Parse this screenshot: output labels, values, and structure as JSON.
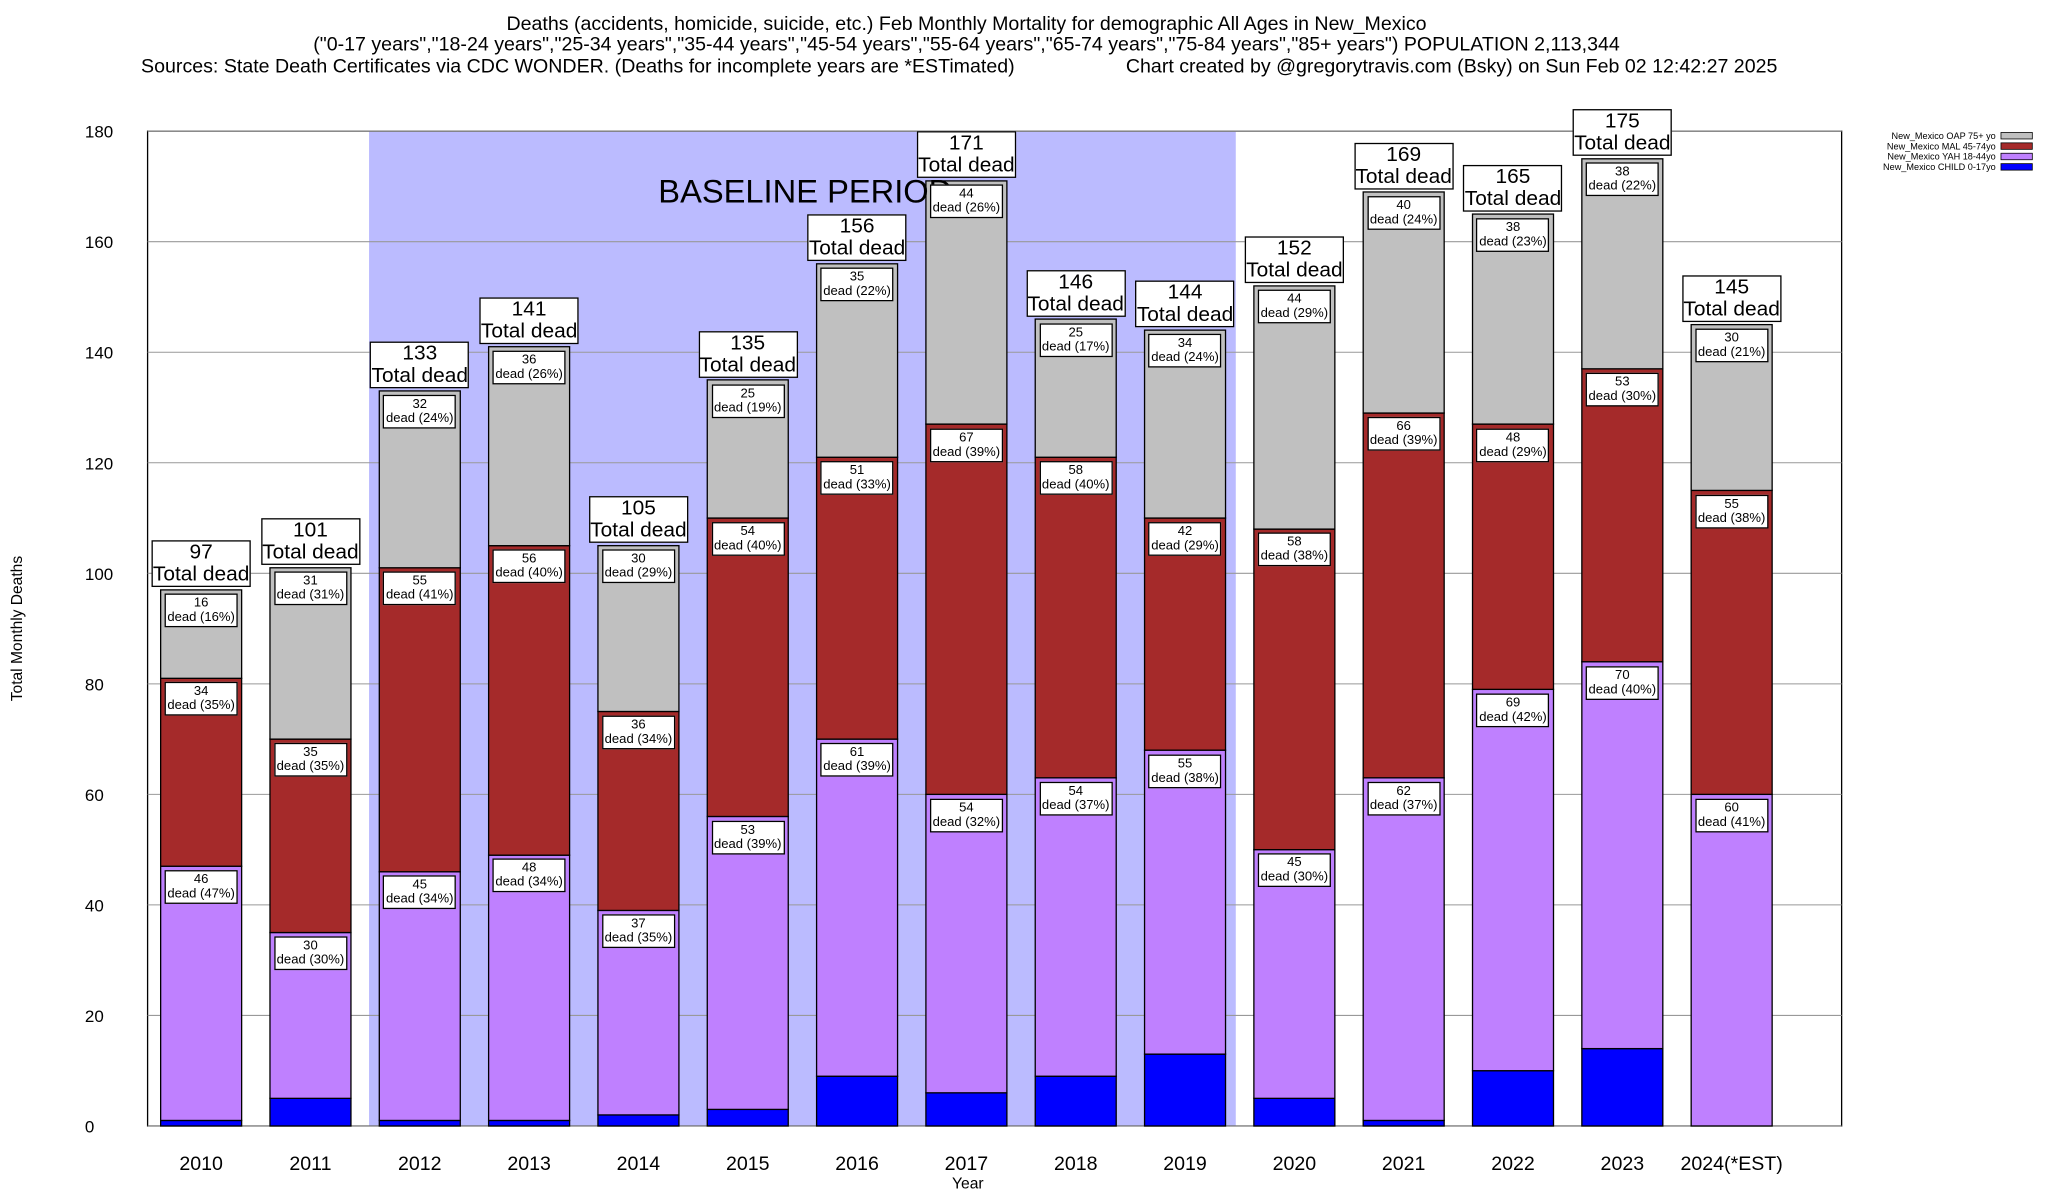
{
  "chart_data": {
    "type": "stacked-bar",
    "title": "Deaths (accidents, homicide, suicide, etc.) Feb Monthly Mortality for demographic All Ages in New_Mexico",
    "subtitle": "(\"0-17 years\",\"18-24 years\",\"25-34 years\",\"35-44 years\",\"45-54 years\",\"55-64 years\",\"65-74 years\",\"75-84 years\",\"85+ years\") POPULATION 2,113,344",
    "source": "Sources: State Death Certificates via CDC WONDER. (Deaths for incomplete years are *ESTimated)",
    "credit": "Chart created by @gregorytravis.com (Bsky) on Sun Feb 02 12:42:27 2025",
    "x_label": "Year",
    "y_label": "Total Monthly Deaths",
    "annotation": "BASELINE PERIOD",
    "categories": [
      "2010",
      "2011",
      "2012",
      "2013",
      "2014",
      "2015",
      "2016",
      "2017",
      "2018",
      "2019",
      "2020",
      "2021",
      "2022",
      "2023",
      "2024(*EST)"
    ],
    "ylim": [
      0,
      180
    ],
    "yticks": [
      0,
      20,
      40,
      60,
      80,
      100,
      120,
      140,
      160,
      180
    ],
    "grid": true,
    "series": [
      {
        "name": "New_Mexico CHILD 0-17yo",
        "color": "#0000ff",
        "values": [
          1,
          5,
          1,
          1,
          2,
          3,
          9,
          6,
          9,
          13,
          5,
          1,
          10,
          14,
          0
        ]
      },
      {
        "name": "New_Mexico YAH 18-44yo",
        "color": "#bf80ff",
        "values": [
          46,
          30,
          45,
          48,
          37,
          53,
          61,
          54,
          54,
          55,
          45,
          62,
          69,
          70,
          60
        ],
        "value_labels": [
          "46\ndead (47%)",
          "30\ndead (30%)",
          "45\ndead (34%)",
          "48\ndead (34%)",
          "37\ndead (35%)",
          "53\ndead (39%)",
          "61\ndead (39%)",
          "54\ndead (32%)",
          "54\ndead (37%)",
          "55\ndead (38%)",
          "45\ndead (30%)",
          "62\ndead (37%)",
          "69\ndead (42%)",
          "70\ndead (40%)",
          "60\ndead (41%)"
        ]
      },
      {
        "name": "New_Mexico MAL 45-74yo",
        "color": "#a52a2a",
        "values": [
          34,
          35,
          55,
          56,
          36,
          54,
          51,
          67,
          58,
          42,
          58,
          66,
          48,
          53,
          55
        ],
        "value_labels": [
          "34\ndead (35%)",
          "35\ndead (35%)",
          "55\ndead (41%)",
          "56\ndead (40%)",
          "36\ndead (34%)",
          "54\ndead (40%)",
          "51\ndead (33%)",
          "67\ndead (39%)",
          "58\ndead (40%)",
          "42\ndead (29%)",
          "58\ndead (38%)",
          "66\ndead (39%)",
          "48\ndead (29%)",
          "53\ndead (30%)",
          "55\ndead (38%)"
        ]
      },
      {
        "name": "New_Mexico OAP 75+ yo",
        "color": "#c0c0c0",
        "values": [
          16,
          31,
          32,
          36,
          30,
          25,
          35,
          44,
          25,
          34,
          44,
          40,
          38,
          38,
          30
        ],
        "value_labels": [
          "16\ndead (16%)",
          "31\ndead (31%)",
          "32\ndead (24%)",
          "36\ndead (26%)",
          "30\ndead (29%)",
          "25\ndead (19%)",
          "35\ndead (22%)",
          "44\ndead (26%)",
          "25\ndead (17%)",
          "34\ndead (24%)",
          "44\ndead (29%)",
          "40\ndead (24%)",
          "38\ndead (23%)",
          "38\ndead (22%)",
          "30\ndead (21%)"
        ]
      }
    ],
    "totals": [
      97,
      101,
      133,
      141,
      105,
      135,
      156,
      171,
      146,
      144,
      152,
      169,
      165,
      175,
      145
    ],
    "total_label": "Total dead",
    "legend": "top-right"
  }
}
